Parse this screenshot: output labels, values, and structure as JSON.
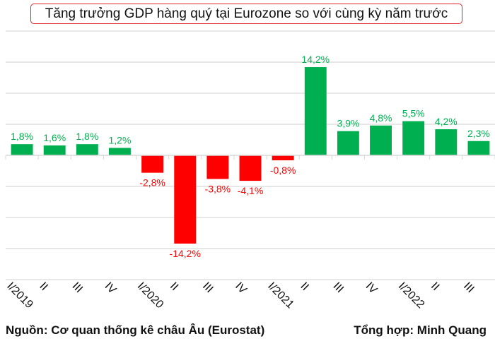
{
  "chart_data": {
    "type": "bar",
    "title": "Tăng trưởng GDP hàng quý tại Eurozone so với cùng kỳ năm trước",
    "xlabel": "",
    "ylabel": "",
    "categories": [
      "I/2019",
      "II",
      "III",
      "IV",
      "I/2020",
      "II",
      "III",
      "IV",
      "I/2021",
      "II",
      "III",
      "IV",
      "I/2022",
      "II",
      "III"
    ],
    "values": [
      1.8,
      1.6,
      1.8,
      1.2,
      -2.8,
      -14.2,
      -3.8,
      -4.1,
      -0.8,
      14.2,
      3.9,
      4.8,
      5.5,
      4.2,
      2.3
    ],
    "data_labels": [
      "1,8%",
      "1,6%",
      "1,8%",
      "1,2%",
      "-2,8%",
      "-14,2%",
      "-3,8%",
      "-4,1%",
      "-0,8%",
      "14,2%",
      "3,9%",
      "4,8%",
      "5,5%",
      "4,2%",
      "2,3%"
    ],
    "ylim": [
      -20,
      20
    ],
    "ytick_step": 5,
    "y_tick_labels_visible": false,
    "grid": true,
    "legend": "none",
    "colors": {
      "positive": "#00b050",
      "negative": "#ff0000",
      "grid": "#e0e0e0"
    }
  },
  "footer": {
    "source": "Nguồn: Cơ quan thống kê châu Âu (Eurostat)",
    "credit": "Tổng hợp: Minh Quang"
  }
}
